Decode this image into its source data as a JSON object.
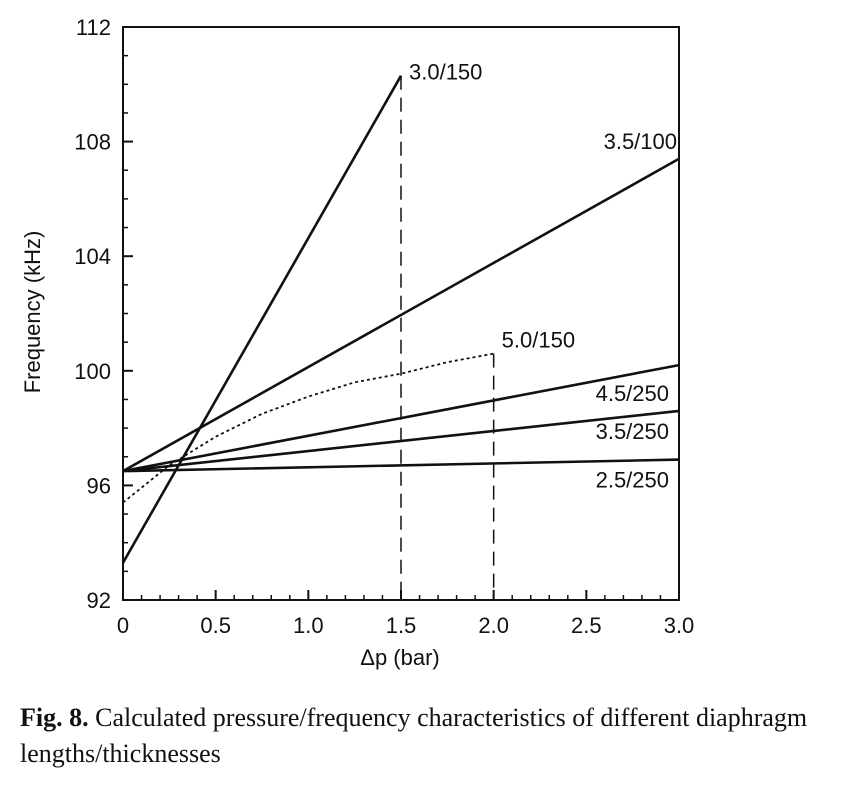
{
  "chart_data": {
    "type": "line",
    "xlabel": "Δp (bar)",
    "ylabel": "Frequency (kHz)",
    "xlim": [
      0,
      3.0
    ],
    "ylim": [
      92,
      112
    ],
    "x_ticks": [
      "0",
      "0.5",
      "1.0",
      "1.5",
      "2.0",
      "2.5",
      "3.0"
    ],
    "y_ticks": [
      "92",
      "96",
      "100",
      "104",
      "108",
      "112"
    ],
    "grid": false,
    "legend": "none",
    "series": [
      {
        "name": "3.0/150",
        "style": "solid",
        "x": [
          0,
          1.5
        ],
        "y": [
          93.3,
          110.3
        ]
      },
      {
        "name": "3.5/100",
        "style": "solid",
        "x": [
          0,
          3.0
        ],
        "y": [
          96.5,
          107.4
        ]
      },
      {
        "name": "5.0/150",
        "style": "dotted",
        "x": [
          0,
          0.25,
          0.5,
          0.75,
          1.0,
          1.25,
          1.5,
          1.75,
          2.0
        ],
        "y": [
          95.4,
          96.7,
          97.7,
          98.5,
          99.1,
          99.6,
          99.9,
          100.3,
          100.6
        ]
      },
      {
        "name": "4.5/250",
        "style": "solid",
        "x": [
          0,
          3.0
        ],
        "y": [
          96.5,
          100.2
        ]
      },
      {
        "name": "3.5/250",
        "style": "solid",
        "x": [
          0,
          3.0
        ],
        "y": [
          96.5,
          98.6
        ]
      },
      {
        "name": "2.5/250",
        "style": "solid",
        "x": [
          0,
          3.0
        ],
        "y": [
          96.5,
          96.9
        ]
      }
    ],
    "dashed_verticals": [
      {
        "x": 1.5,
        "y_top": 110.3
      },
      {
        "x": 2.0,
        "y_top": 100.6
      }
    ]
  },
  "caption": {
    "fig_label": "Fig. 8.",
    "text": " Calculated pressure/frequency characteristics of different diaphragm lengths/thicknesses"
  }
}
